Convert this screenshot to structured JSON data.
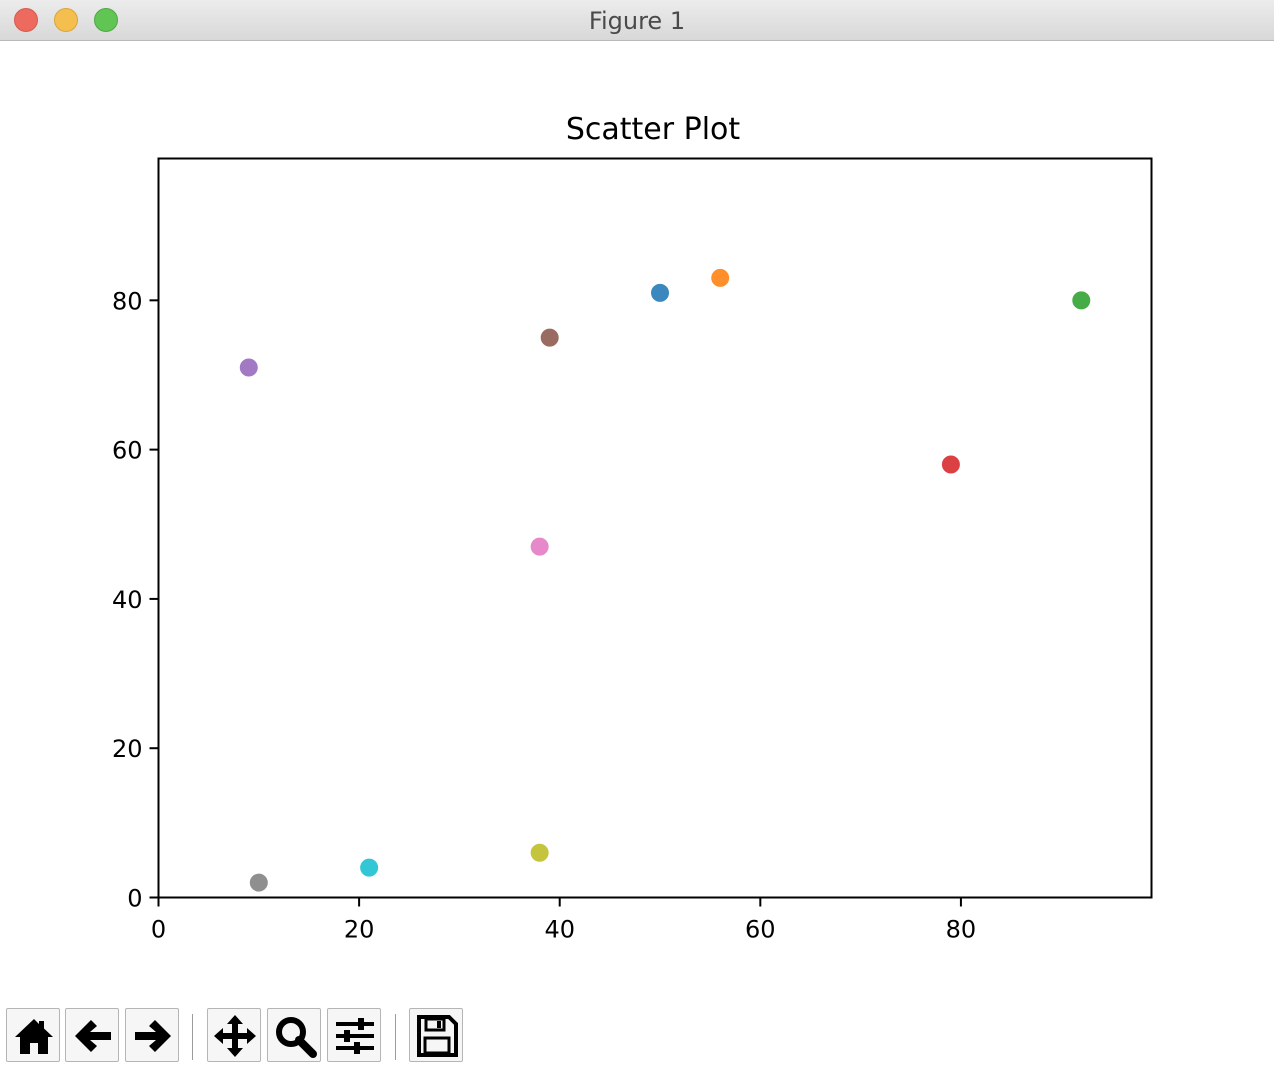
{
  "window": {
    "title": "Figure 1"
  },
  "chart_data": {
    "type": "scatter",
    "title": "Scatter Plot",
    "xlabel": "",
    "ylabel": "",
    "xlim": [
      0,
      99
    ],
    "ylim": [
      0,
      99
    ],
    "xticks": [
      0,
      20,
      40,
      60,
      80
    ],
    "yticks": [
      0,
      20,
      40,
      60,
      80
    ],
    "grid": false,
    "points": [
      {
        "x": 50,
        "y": 81,
        "color": "#1f77b4"
      },
      {
        "x": 56,
        "y": 83,
        "color": "#ff7f0e"
      },
      {
        "x": 92,
        "y": 80,
        "color": "#2ca02c"
      },
      {
        "x": 79,
        "y": 58,
        "color": "#d62728"
      },
      {
        "x": 9,
        "y": 71,
        "color": "#9467bd"
      },
      {
        "x": 39,
        "y": 75,
        "color": "#8c564b"
      },
      {
        "x": 38,
        "y": 47,
        "color": "#e377c2"
      },
      {
        "x": 10,
        "y": 2,
        "color": "#7f7f7f"
      },
      {
        "x": 38,
        "y": 6,
        "color": "#bcbd22"
      },
      {
        "x": 21,
        "y": 4,
        "color": "#17becf"
      }
    ]
  },
  "toolbar": {
    "buttons": [
      "home-icon",
      "back-arrow-icon",
      "forward-arrow-icon",
      "pan-icon",
      "zoom-icon",
      "configure-subplots-icon",
      "save-icon"
    ]
  }
}
